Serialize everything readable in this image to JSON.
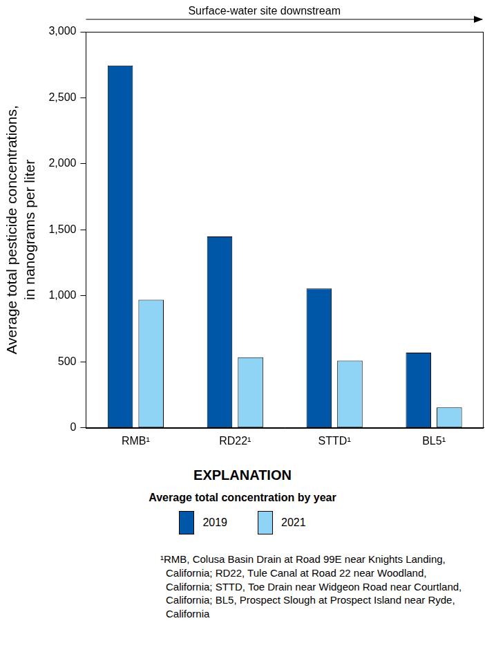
{
  "chart_data": {
    "type": "bar",
    "annotation": "Surface-water site downstream",
    "y_label": [
      "Average total pesticide concentrations,",
      "in nanograms per liter"
    ],
    "categories": [
      "RMB¹",
      "RD22¹",
      "STTD¹",
      "BL5¹"
    ],
    "series": [
      {
        "name": "2019",
        "color": "#0057a8",
        "values": [
          2745,
          1450,
          1055,
          570
        ]
      },
      {
        "name": "2021",
        "color": "#8fd3f5",
        "values": [
          970,
          535,
          510,
          155
        ]
      }
    ],
    "ylim": [
      0,
      3000
    ],
    "yticks": [
      0,
      500,
      {
        "value": 1000,
        "label": "1,000"
      },
      {
        "value": 1500,
        "label": "1,500"
      },
      {
        "value": 2000,
        "label": "2,000"
      },
      {
        "value": 2500,
        "label": "2,500"
      },
      {
        "value": 3000,
        "label": "3,000"
      }
    ],
    "grid": false,
    "legend": "bottom",
    "legend_title": "EXPLANATION",
    "legend_subtitle": "Average total concentration by year",
    "footnote": "¹RMB, Colusa Basin Drain at Road 99E near Knights Landing, California; RD22, Tule Canal at Road 22 near Woodland, California; STTD, Toe Drain near Widgeon Road near Courtland, California; BL5, Prospect Slough at Prospect Island near Ryde, California"
  }
}
